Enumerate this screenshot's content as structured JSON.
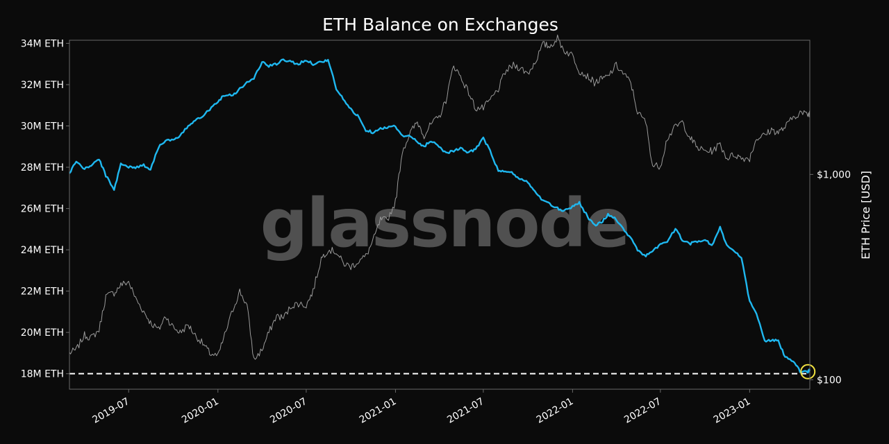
{
  "chart_data": {
    "type": "line",
    "title": "ETH Balance on Exchanges",
    "watermark": "glassnode",
    "xlabel": "",
    "ylabel_left": "",
    "ylabel_right": "ETH Price [USD]",
    "x_ticks": [
      "2019-07",
      "2020-01",
      "2020-07",
      "2021-01",
      "2021-07",
      "2022-01",
      "2022-07",
      "2023-01"
    ],
    "x_range": [
      "2019-03-01",
      "2023-05-05"
    ],
    "y_left": {
      "ticks": [
        "34M ETH",
        "32M ETH",
        "30M ETH",
        "28M ETH",
        "26M ETH",
        "24M ETH",
        "22M ETH",
        "20M ETH",
        "18M ETH"
      ],
      "tick_values": [
        34,
        32,
        30,
        28,
        26,
        24,
        22,
        20,
        18
      ],
      "range": [
        17.25,
        34.15
      ],
      "unit": "M ETH"
    },
    "y_right": {
      "scale": "log",
      "ticks": [
        "$1,000",
        "$100"
      ],
      "tick_values": [
        1000,
        100
      ],
      "range": [
        90,
        4500
      ]
    },
    "reference_line": {
      "axis": "left",
      "value": 18.0,
      "style": "dashed",
      "color": "#ffffff"
    },
    "highlight": {
      "x": "2023-05-01",
      "y": 18.1,
      "color": "#f0e040",
      "shape": "circle"
    },
    "grid": false,
    "legend": "none",
    "series": [
      {
        "axis": "left",
        "color": "#1fb8f0",
        "x": [
          "2019-03-01",
          "2019-03-15",
          "2019-04-01",
          "2019-04-15",
          "2019-05-01",
          "2019-05-15",
          "2019-06-01",
          "2019-06-15",
          "2019-07-01",
          "2019-07-15",
          "2019-08-01",
          "2019-08-15",
          "2019-09-01",
          "2019-09-15",
          "2019-10-01",
          "2019-10-15",
          "2019-11-01",
          "2019-11-15",
          "2019-12-01",
          "2019-12-15",
          "2020-01-01",
          "2020-01-15",
          "2020-02-01",
          "2020-02-15",
          "2020-03-01",
          "2020-03-15",
          "2020-04-01",
          "2020-04-15",
          "2020-05-01",
          "2020-05-15",
          "2020-06-01",
          "2020-06-15",
          "2020-07-01",
          "2020-07-15",
          "2020-08-01",
          "2020-08-15",
          "2020-09-01",
          "2020-09-15",
          "2020-10-01",
          "2020-10-15",
          "2020-11-01",
          "2020-11-15",
          "2020-12-01",
          "2020-12-15",
          "2021-01-01",
          "2021-01-15",
          "2021-02-01",
          "2021-02-15",
          "2021-03-01",
          "2021-03-15",
          "2021-04-01",
          "2021-04-15",
          "2021-05-01",
          "2021-05-15",
          "2021-06-01",
          "2021-06-15",
          "2021-07-01",
          "2021-07-15",
          "2021-08-01",
          "2021-08-15",
          "2021-09-01",
          "2021-09-15",
          "2021-10-01",
          "2021-10-15",
          "2021-11-01",
          "2021-11-15",
          "2021-12-01",
          "2021-12-15",
          "2022-01-01",
          "2022-01-15",
          "2022-02-01",
          "2022-02-15",
          "2022-03-01",
          "2022-03-15",
          "2022-04-01",
          "2022-04-15",
          "2022-05-01",
          "2022-05-15",
          "2022-06-01",
          "2022-06-15",
          "2022-07-01",
          "2022-07-15",
          "2022-08-01",
          "2022-08-15",
          "2022-09-01",
          "2022-09-15",
          "2022-10-01",
          "2022-10-15",
          "2022-11-01",
          "2022-11-15",
          "2022-12-01",
          "2022-12-15",
          "2023-01-01",
          "2023-01-15",
          "2023-02-01",
          "2023-02-15",
          "2023-03-01",
          "2023-03-15",
          "2023-04-01",
          "2023-04-15",
          "2023-05-01",
          "2023-05-05"
        ],
        "y": [
          27.7,
          28.3,
          27.9,
          28.1,
          28.4,
          27.6,
          26.9,
          28.2,
          28.0,
          28.0,
          28.1,
          27.9,
          29.0,
          29.3,
          29.3,
          29.5,
          30.0,
          30.3,
          30.5,
          30.8,
          31.2,
          31.5,
          31.5,
          31.8,
          32.1,
          32.3,
          33.1,
          32.9,
          33.0,
          33.2,
          33.1,
          33.0,
          33.2,
          33.0,
          33.1,
          33.2,
          31.8,
          31.3,
          30.8,
          30.5,
          29.8,
          29.7,
          29.9,
          29.9,
          30.0,
          29.5,
          29.5,
          29.2,
          29.0,
          29.3,
          29.0,
          28.7,
          28.8,
          28.9,
          28.7,
          28.9,
          29.4,
          28.8,
          27.8,
          27.8,
          27.7,
          27.4,
          27.3,
          26.8,
          26.4,
          26.2,
          26.0,
          25.9,
          26.1,
          26.3,
          25.6,
          25.2,
          25.3,
          25.7,
          25.5,
          25.0,
          24.6,
          24.0,
          23.7,
          23.9,
          24.3,
          24.4,
          25.0,
          24.5,
          24.3,
          24.4,
          24.5,
          24.2,
          25.1,
          24.2,
          23.9,
          23.6,
          21.5,
          20.9,
          19.6,
          19.6,
          19.6,
          18.8,
          18.6,
          18.1,
          18.1,
          18.2
        ]
      },
      {
        "axis": "right",
        "color": "#9a9a9a",
        "x": [
          "2019-03-01",
          "2019-03-15",
          "2019-04-01",
          "2019-04-15",
          "2019-05-01",
          "2019-05-15",
          "2019-06-01",
          "2019-06-15",
          "2019-07-01",
          "2019-07-15",
          "2019-08-01",
          "2019-08-15",
          "2019-09-01",
          "2019-09-15",
          "2019-10-01",
          "2019-10-15",
          "2019-11-01",
          "2019-11-15",
          "2019-12-01",
          "2019-12-15",
          "2020-01-01",
          "2020-01-15",
          "2020-02-01",
          "2020-02-15",
          "2020-03-01",
          "2020-03-15",
          "2020-04-01",
          "2020-04-15",
          "2020-05-01",
          "2020-05-15",
          "2020-06-01",
          "2020-06-15",
          "2020-07-01",
          "2020-07-15",
          "2020-08-01",
          "2020-08-15",
          "2020-09-01",
          "2020-09-15",
          "2020-10-01",
          "2020-10-15",
          "2020-11-01",
          "2020-11-15",
          "2020-12-01",
          "2020-12-15",
          "2021-01-01",
          "2021-01-15",
          "2021-02-01",
          "2021-02-15",
          "2021-03-01",
          "2021-03-15",
          "2021-04-01",
          "2021-04-15",
          "2021-05-01",
          "2021-05-15",
          "2021-06-01",
          "2021-06-15",
          "2021-07-01",
          "2021-07-15",
          "2021-08-01",
          "2021-08-15",
          "2021-09-01",
          "2021-09-15",
          "2021-10-01",
          "2021-10-15",
          "2021-11-01",
          "2021-11-15",
          "2021-12-01",
          "2021-12-15",
          "2022-01-01",
          "2022-01-15",
          "2022-02-01",
          "2022-02-15",
          "2022-03-01",
          "2022-03-15",
          "2022-04-01",
          "2022-04-15",
          "2022-05-01",
          "2022-05-15",
          "2022-06-01",
          "2022-06-15",
          "2022-07-01",
          "2022-07-15",
          "2022-08-01",
          "2022-08-15",
          "2022-09-01",
          "2022-09-15",
          "2022-10-01",
          "2022-10-15",
          "2022-11-01",
          "2022-11-15",
          "2022-12-01",
          "2022-12-15",
          "2023-01-01",
          "2023-01-15",
          "2023-02-01",
          "2023-02-15",
          "2023-03-01",
          "2023-03-15",
          "2023-04-01",
          "2023-04-15",
          "2023-05-01",
          "2023-05-05"
        ],
        "y": [
          135,
          140,
          165,
          160,
          175,
          255,
          265,
          290,
          300,
          250,
          215,
          190,
          175,
          205,
          180,
          170,
          185,
          165,
          150,
          135,
          130,
          165,
          220,
          270,
          230,
          125,
          140,
          170,
          205,
          200,
          230,
          235,
          230,
          270,
          390,
          430,
          420,
          370,
          355,
          375,
          400,
          470,
          600,
          600,
          735,
          1300,
          1600,
          1800,
          1550,
          1750,
          1900,
          2300,
          3400,
          3000,
          2500,
          2100,
          2100,
          2300,
          2600,
          3150,
          3400,
          3300,
          3100,
          3500,
          4300,
          4200,
          4600,
          4000,
          3800,
          3200,
          3000,
          2800,
          2900,
          3000,
          3400,
          3100,
          2800,
          2000,
          1800,
          1100,
          1100,
          1500,
          1700,
          1800,
          1500,
          1350,
          1300,
          1300,
          1400,
          1200,
          1250,
          1200,
          1200,
          1500,
          1550,
          1650,
          1600,
          1700,
          1900,
          2000,
          1950,
          2000
        ]
      }
    ]
  }
}
